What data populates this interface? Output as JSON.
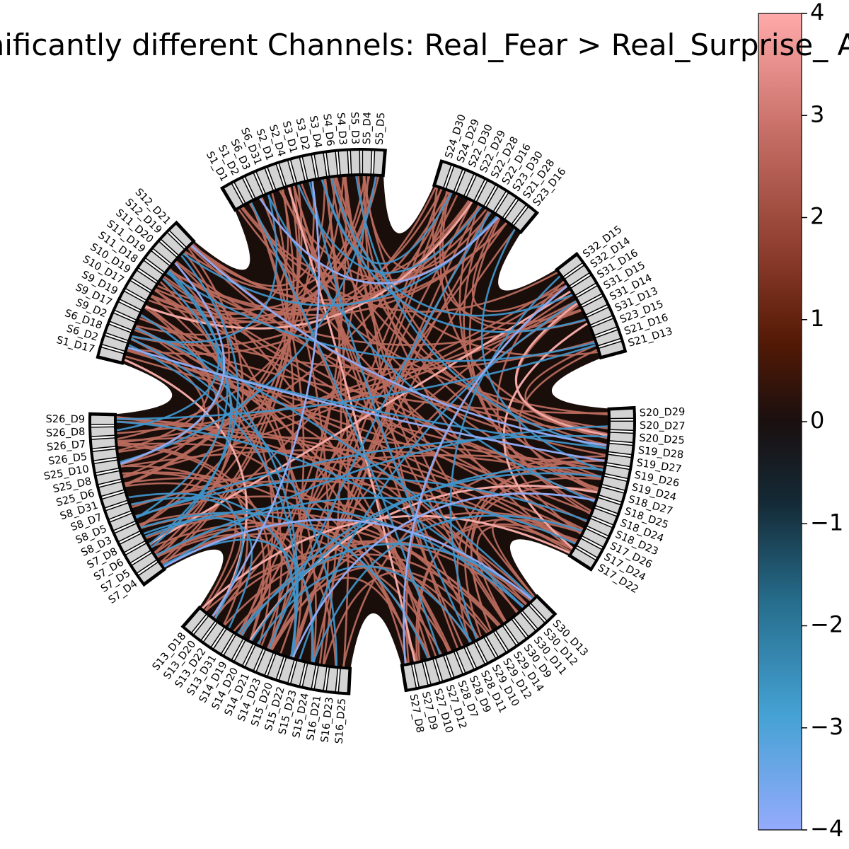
{
  "chart_data": {
    "type": "chord",
    "title": "Significantly different Channels: Real_Fear > Real_Surprise_ Abt",
    "groups": [
      [
        "S1_D1",
        "S1_D2",
        "S6_D3",
        "S6_D31",
        "S2_D1",
        "S2_D4",
        "S3_D1",
        "S3_D2",
        "S3_D4",
        "S4_D6",
        "S4_D3",
        "S5_D3",
        "S5_D4",
        "S5_D5"
      ],
      [
        "S24_D30",
        "S24_D29",
        "S22_D30",
        "S22_D29",
        "S22_D28",
        "S22_D16",
        "S23_D30",
        "S21_D28",
        "S23_D16"
      ],
      [
        "S32_D15",
        "S32_D14",
        "S31_D16",
        "S31_D15",
        "S31_D14",
        "S31_D13",
        "S23_D15",
        "S21_D16",
        "S21_D13"
      ],
      [
        "S20_D29",
        "S20_D27",
        "S20_D25",
        "S19_D28",
        "S19_D27",
        "S19_D26",
        "S19_D24",
        "S18_D27",
        "S18_D25",
        "S18_D24",
        "S18_D23",
        "S17_D26",
        "S17_D24",
        "S17_D22"
      ],
      [
        "S30_D13",
        "S30_D12",
        "S30_D11",
        "S30_D9",
        "S29_D14",
        "S29_D12",
        "S29_D10",
        "S28_D11",
        "S28_D9",
        "S28_D7",
        "S27_D12",
        "S27_D10",
        "S27_D9",
        "S27_D8"
      ],
      [
        "S16_D25",
        "S16_D23",
        "S16_D21",
        "S15_D24",
        "S15_D23",
        "S15_D22",
        "S15_D20",
        "S14_D23",
        "S14_D21",
        "S14_D20",
        "S14_D19",
        "S13_D31",
        "S13_D22",
        "S13_D20",
        "S13_D18"
      ],
      [
        "S7_D4",
        "S7_D5",
        "S7_D6",
        "S7_D8",
        "S8_D3",
        "S8_D5",
        "S8_D7",
        "S8_D31",
        "S25_D6",
        "S25_D8",
        "S25_D10",
        "S26_D5",
        "S26_D7",
        "S26_D8",
        "S26_D9"
      ],
      [
        "S1_D17",
        "S6_D2",
        "S6_D18",
        "S9_D2",
        "S9_D17",
        "S9_D19",
        "S10_D17",
        "S10_D19",
        "S11_D18",
        "S11_D19",
        "S11_D20",
        "S12_D19",
        "S12_D21"
      ]
    ],
    "colorbar": {
      "ticks": [
        "4",
        "3",
        "2",
        "1",
        "0",
        "−1",
        "−2",
        "−3",
        "−4"
      ],
      "range": [
        -4,
        4
      ]
    },
    "colors": {
      "background": "#1a0e0b",
      "block_fill": "#d3d3d3",
      "positive_link": "#b86a5d",
      "positive_strong": "#f2a8a4",
      "negative_link": "#3f94c9",
      "negative_strong": "#8fa9f0"
    }
  }
}
